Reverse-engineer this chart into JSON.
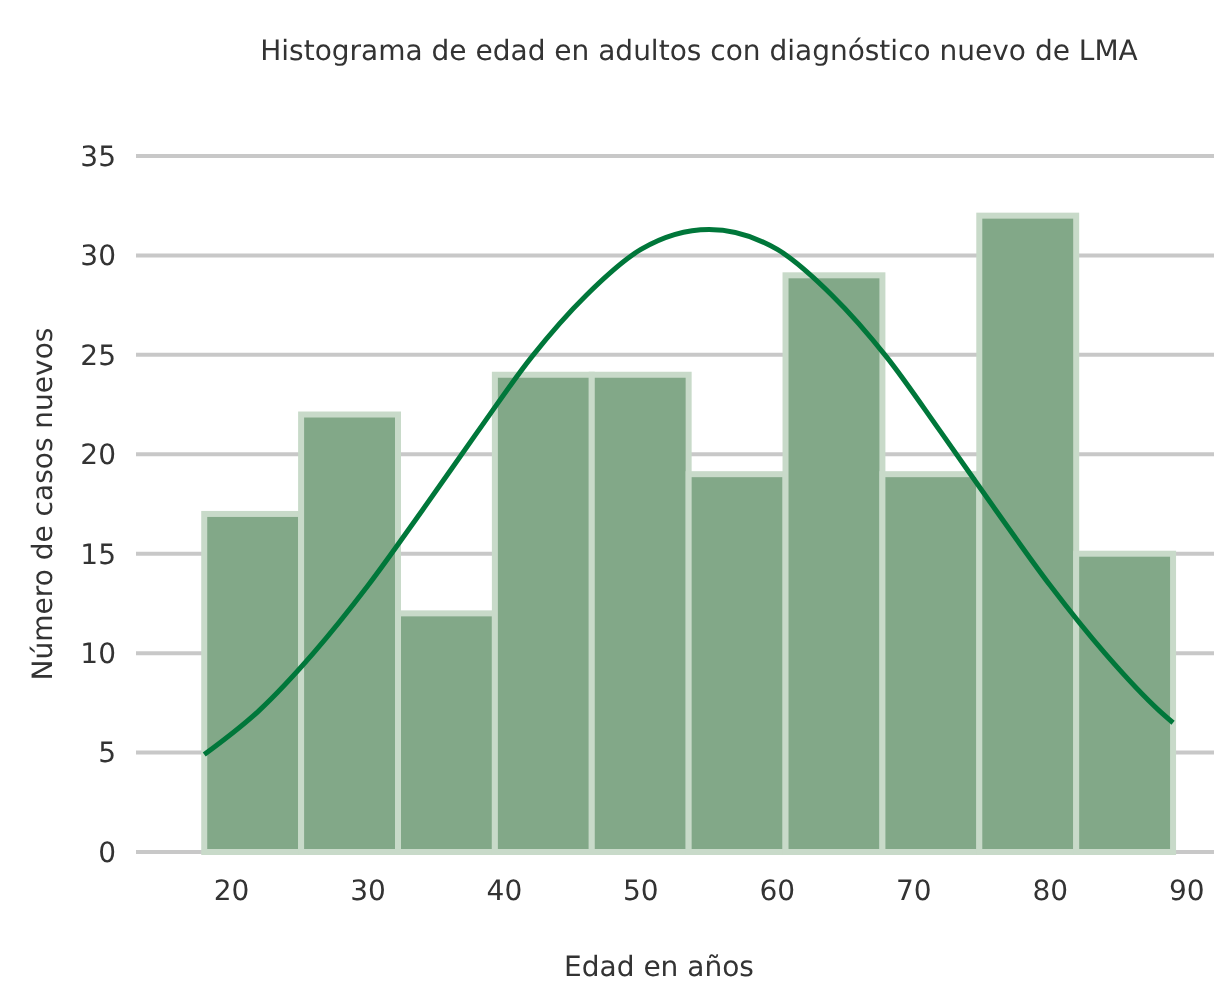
{
  "chart_data": {
    "type": "histogram",
    "title": "Histograma de edad en adultos con diagnóstico nuevo de LMA",
    "xlabel": "Edad en años",
    "ylabel": "Número de casos nuevos",
    "bins": [
      18,
      25.1,
      32.2,
      39.3,
      46.4,
      53.5,
      60.6,
      67.7,
      74.8,
      81.9,
      89
    ],
    "series": [
      {
        "color": "#82a888",
        "values": [
          17,
          22,
          12,
          24,
          24,
          19,
          29,
          19,
          32,
          15
        ]
      },
      {
        "type": "line",
        "color": "#00773a",
        "x": [
          18,
          22,
          26,
          30,
          34,
          38,
          42,
          46,
          50,
          55,
          60,
          64,
          68,
          72,
          76,
          80,
          84,
          88,
          89
        ],
        "values": [
          4.9,
          7.1,
          10.0,
          13.4,
          17.2,
          21.1,
          24.9,
          28.0,
          30.3,
          31.3,
          30.3,
          28.0,
          24.9,
          21.1,
          17.2,
          13.4,
          10.0,
          7.1,
          6.5
        ]
      }
    ],
    "xlim": [
      13,
      92
    ],
    "xticks": [
      20,
      30,
      40,
      50,
      60,
      70,
      80,
      90
    ],
    "ylim": [
      0,
      35
    ],
    "yticks": [
      0,
      5,
      10,
      15,
      20,
      25,
      30,
      35
    ],
    "grid": "y",
    "marker": "none",
    "line_style": "solid"
  }
}
